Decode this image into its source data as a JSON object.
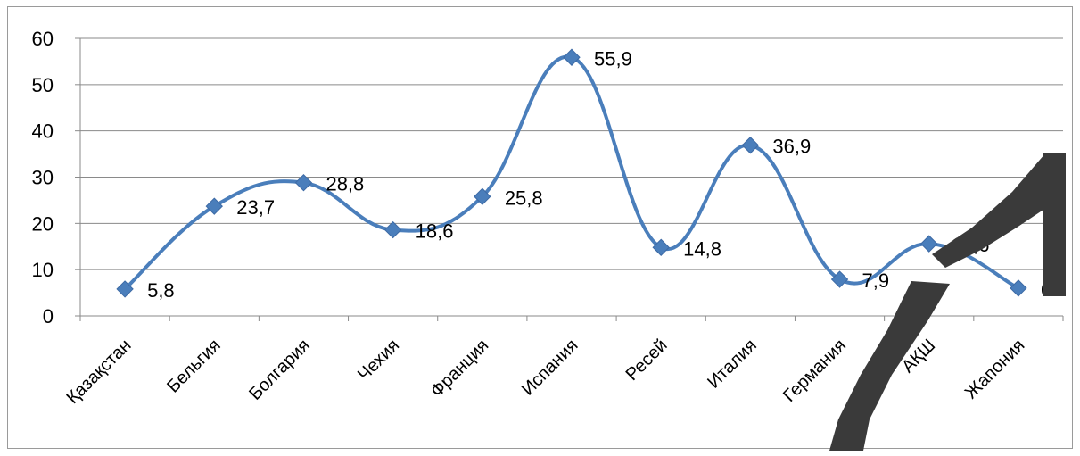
{
  "chart_data": {
    "type": "line",
    "smooth": true,
    "categories": [
      "Қазақстан",
      "Бельгия",
      "Болгария",
      "Чехия",
      "Франция",
      "Испания",
      "Ресей",
      "Италия",
      "Германия",
      "АҚШ",
      "Жапония"
    ],
    "series": [
      {
        "values": [
          5.8,
          23.7,
          28.8,
          18.6,
          25.8,
          55.9,
          14.8,
          36.9,
          7.9,
          15.6,
          6
        ],
        "labels": [
          "5,8",
          "23,7",
          "28,8",
          "18,6",
          "25,8",
          "55,9",
          "14,8",
          "36,9",
          "7,9",
          "15,6",
          "6"
        ],
        "color": "#4a7ebb",
        "marker": "diamond"
      }
    ],
    "ylim": [
      0,
      60
    ],
    "yticks": [
      0,
      10,
      20,
      30,
      40,
      50,
      60
    ],
    "grid": true,
    "legend": "none",
    "title": "",
    "xlabel": "",
    "ylabel": ""
  },
  "watermark": {
    "text": "ГУ",
    "color": "#3a3a3a"
  }
}
